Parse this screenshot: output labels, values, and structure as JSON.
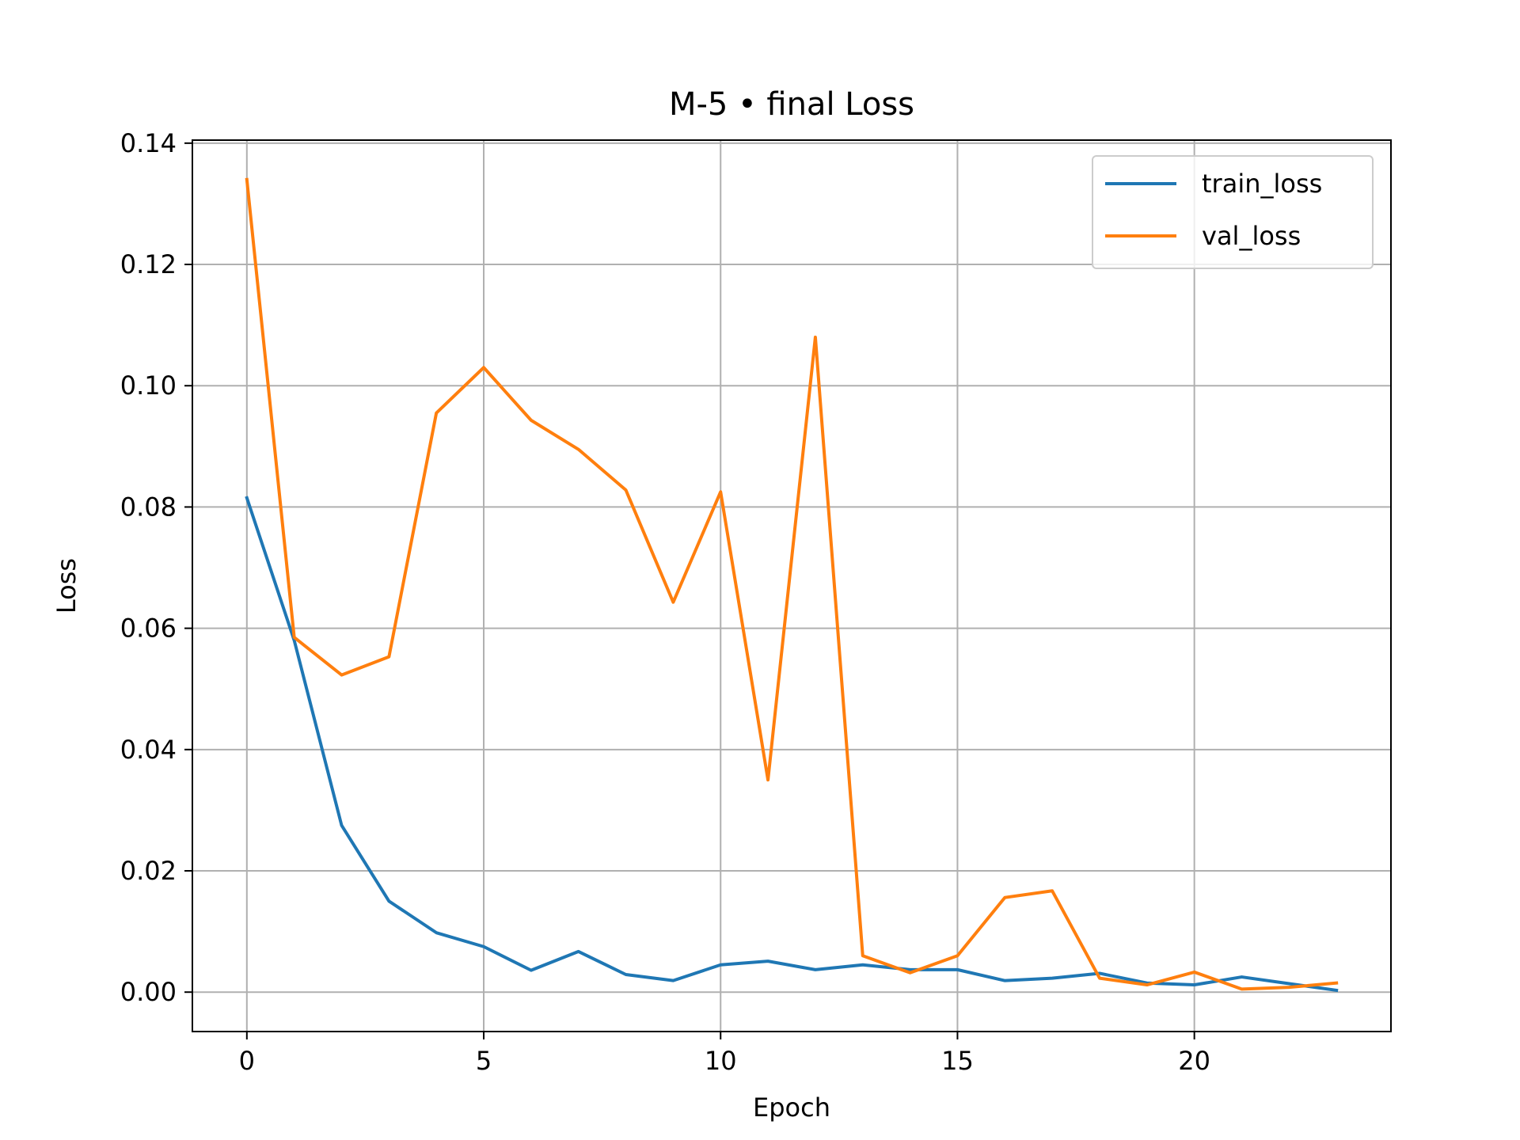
{
  "chart_data": {
    "type": "line",
    "title": "M-5 • final Loss",
    "xlabel": "Epoch",
    "ylabel": "Loss",
    "xlim": [
      -1.15,
      24.15
    ],
    "ylim": [
      -0.0065,
      0.1405
    ],
    "xticks": [
      0,
      5,
      10,
      15,
      20
    ],
    "xtick_labels": [
      "0",
      "5",
      "10",
      "15",
      "20"
    ],
    "yticks": [
      0.0,
      0.02,
      0.04,
      0.06,
      0.08,
      0.1,
      0.12,
      0.14
    ],
    "ytick_labels": [
      "0.00",
      "0.02",
      "0.04",
      "0.06",
      "0.08",
      "0.10",
      "0.12",
      "0.14"
    ],
    "grid": true,
    "legend_position": "top-right",
    "x": [
      0,
      1,
      2,
      3,
      4,
      5,
      6,
      7,
      8,
      9,
      10,
      11,
      12,
      13,
      14,
      15,
      16,
      17,
      18,
      19,
      20,
      21,
      22,
      23
    ],
    "series": [
      {
        "name": "train_loss",
        "color": "#1f77b4",
        "values": [
          0.0815,
          0.058,
          0.0275,
          0.015,
          0.0098,
          0.0075,
          0.0036,
          0.0067,
          0.0029,
          0.0019,
          0.0045,
          0.0051,
          0.0037,
          0.0045,
          0.0037,
          0.0037,
          0.0019,
          0.0023,
          0.0031,
          0.0015,
          0.0012,
          0.0025,
          0.0014,
          0.0003
        ]
      },
      {
        "name": "val_loss",
        "color": "#ff7f0e",
        "values": [
          0.134,
          0.0585,
          0.0523,
          0.0553,
          0.0955,
          0.103,
          0.0943,
          0.0895,
          0.0828,
          0.0643,
          0.0825,
          0.035,
          0.108,
          0.006,
          0.0032,
          0.006,
          0.0156,
          0.0167,
          0.0023,
          0.0012,
          0.0033,
          0.0005,
          0.0008,
          0.0015
        ]
      }
    ]
  }
}
